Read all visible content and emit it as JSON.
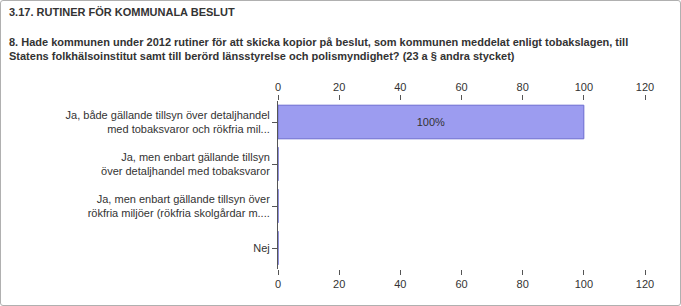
{
  "chart_data": {
    "type": "bar",
    "orientation": "horizontal",
    "title": "3.17. RUTINER FÖR KOMMUNALA BESLUT",
    "subtitle": "8. Hade kommunen under 2012 rutiner för att skicka kopior på beslut, som kommunen meddelat enligt tobakslagen, till Statens folkhälsoinstitut samt till berörd länsstyrelse och polismyndighet? (23 a § andra stycket)",
    "categories": [
      "Ja, både gällande tillsyn över detaljhandel\nmed tobaksvaror och rökfria mil...",
      "Ja, men enbart gällande tillsyn\növer detaljhandel med tobaksvaror",
      "Ja, men enbart gällande tillsyn över\nrökfria miljöer (rökfria skolgårdar m....",
      "Nej"
    ],
    "values": [
      100,
      0,
      0,
      0
    ],
    "value_labels": [
      "100%",
      null,
      null,
      null
    ],
    "data_labels": true,
    "color": "#9c9cf0",
    "xlim": [
      0,
      120
    ],
    "xticks": [
      0,
      20,
      40,
      60,
      80,
      100,
      120
    ],
    "grid": false
  }
}
